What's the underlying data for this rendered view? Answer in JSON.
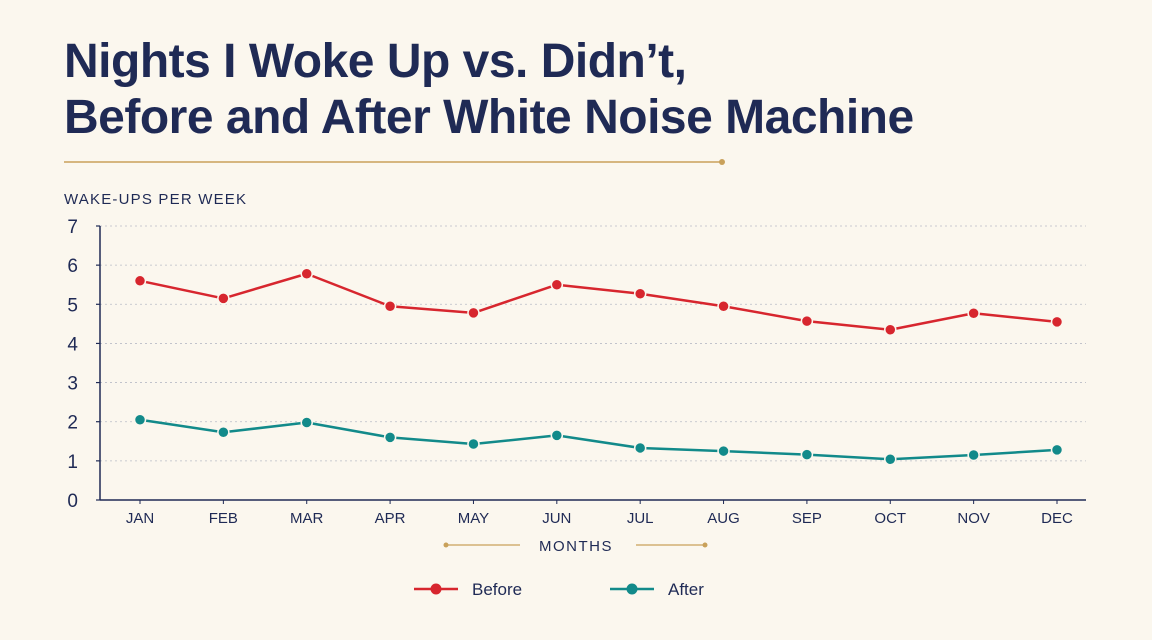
{
  "chart_data": {
    "type": "line",
    "title_lines": [
      "Nights I Woke Up vs. Didn’t,",
      "Before and After White Noise Machine"
    ],
    "ylabel": "WAKE-UPS PER WEEK",
    "xlabel": "MONTHS",
    "categories": [
      "JAN",
      "FEB",
      "MAR",
      "APR",
      "MAY",
      "JUN",
      "JUL",
      "AUG",
      "SEP",
      "OCT",
      "NOV",
      "DEC"
    ],
    "ylim": [
      0,
      7
    ],
    "yticks": [
      "0",
      "1",
      "2",
      "3",
      "4",
      "5",
      "6",
      "7"
    ],
    "grid": true,
    "legend_position": "bottom-center",
    "series": [
      {
        "name": "Before",
        "color": "#d7262e",
        "values": [
          5.6,
          5.15,
          5.78,
          4.95,
          4.78,
          5.5,
          5.27,
          4.95,
          4.57,
          4.35,
          4.77,
          4.55
        ]
      },
      {
        "name": "After",
        "color": "#128a8a",
        "values": [
          2.05,
          1.73,
          1.98,
          1.6,
          1.43,
          1.65,
          1.33,
          1.25,
          1.16,
          1.04,
          1.15,
          1.28
        ]
      }
    ],
    "accent_color": "#c9a15a"
  }
}
